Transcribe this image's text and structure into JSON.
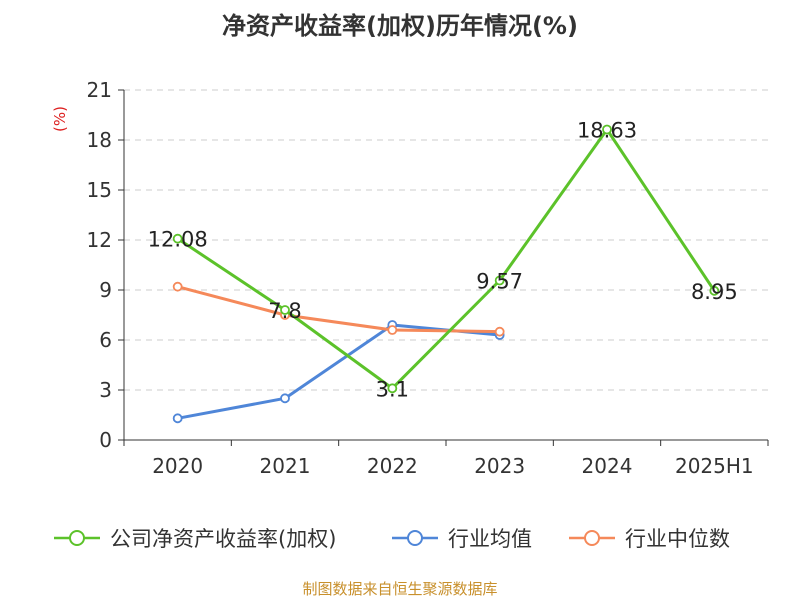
{
  "title": "净资产收益率(加权)历年情况(%)",
  "footer": "制图数据来自恒生聚源数据库",
  "chart_data": {
    "type": "line",
    "title": "净资产收益率(加权)历年情况(%)",
    "ylabel": "(%)",
    "xlabel": "",
    "categories": [
      "2020",
      "2021",
      "2022",
      "2023",
      "2024",
      "2025H1"
    ],
    "ylim": [
      0,
      21
    ],
    "yticks": [
      0,
      3,
      6,
      9,
      12,
      15,
      18,
      21
    ],
    "grid": "horizontal dashed",
    "legend_position": "bottom",
    "series": [
      {
        "name": "公司净资产收益率(加权)",
        "color": "#5cc22a",
        "values": [
          12.08,
          7.8,
          3.1,
          9.57,
          18.63,
          8.95
        ],
        "labels": [
          "12.08",
          "7.8",
          "3.1",
          "9.57",
          "18.63",
          "8.95"
        ]
      },
      {
        "name": "行业均值",
        "color": "#4f86d8",
        "values": [
          1.3,
          2.5,
          6.9,
          6.3,
          null,
          null
        ]
      },
      {
        "name": "行业中位数",
        "color": "#f5895a",
        "values": [
          9.2,
          7.5,
          6.6,
          6.5,
          null,
          null
        ]
      }
    ]
  }
}
